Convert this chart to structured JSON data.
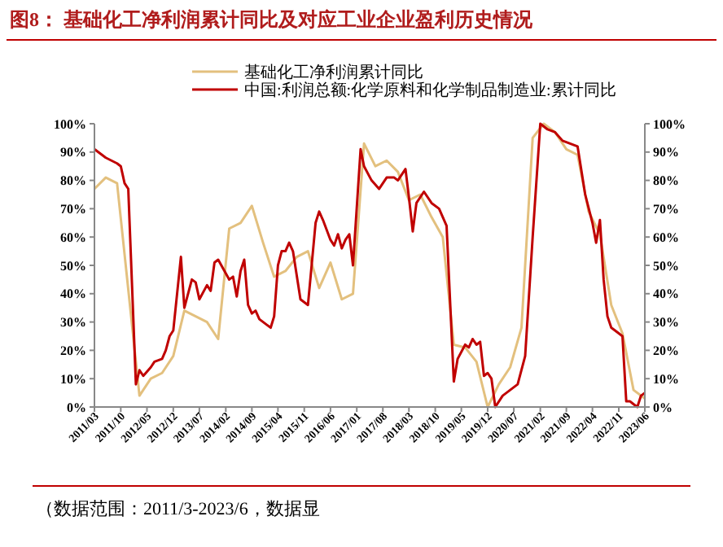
{
  "chart_data": {
    "type": "line",
    "title": "图8：  基础化工净利润累计同比及对应工业企业盈利历史情况",
    "annotations": [
      "（数据范围：2011/3-2023/6，数据显"
    ],
    "xlim": [
      "2011-03",
      "2023-06"
    ],
    "xticks": [
      {
        "value": "2011-03",
        "label": "2011/03"
      },
      {
        "value": "2011-10",
        "label": "2011/10"
      },
      {
        "value": "2012-05",
        "label": "2012/05"
      },
      {
        "value": "2012-12",
        "label": "2012/12"
      },
      {
        "value": "2013-07",
        "label": "2013/07"
      },
      {
        "value": "2014-02",
        "label": "2014/02"
      },
      {
        "value": "2014-09",
        "label": "2014/09"
      },
      {
        "value": "2015-04",
        "label": "2015/04"
      },
      {
        "value": "2015-11",
        "label": "2015/11"
      },
      {
        "value": "2016-06",
        "label": "2016/06"
      },
      {
        "value": "2017-01",
        "label": "2017/01"
      },
      {
        "value": "2017-08",
        "label": "2017/08"
      },
      {
        "value": "2018-03",
        "label": "2018/03"
      },
      {
        "value": "2018-10",
        "label": "2018/10"
      },
      {
        "value": "2019-05",
        "label": "2019/05"
      },
      {
        "value": "2019-12",
        "label": "2019/12"
      },
      {
        "value": "2020-07",
        "label": "2020/07"
      },
      {
        "value": "2021-02",
        "label": "2021/02"
      },
      {
        "value": "2021-09",
        "label": "2021/09"
      },
      {
        "value": "2022-04",
        "label": "2022/04"
      },
      {
        "value": "2022-11",
        "label": "2022/11"
      },
      {
        "value": "2023-06",
        "label": "2023/06"
      }
    ],
    "ylim": [
      0,
      100
    ],
    "yticks": [
      {
        "value": 0,
        "label": "0%"
      },
      {
        "value": 10,
        "label": "10%"
      },
      {
        "value": 20,
        "label": "20%"
      },
      {
        "value": 30,
        "label": "30%"
      },
      {
        "value": 40,
        "label": "40%"
      },
      {
        "value": 50,
        "label": "50%"
      },
      {
        "value": 60,
        "label": "60%"
      },
      {
        "value": 70,
        "label": "70%"
      },
      {
        "value": 80,
        "label": "80%"
      },
      {
        "value": 90,
        "label": "90%"
      },
      {
        "value": 100,
        "label": "100%"
      }
    ],
    "y2lim": [
      0,
      100
    ],
    "y2ticks": [
      {
        "value": 0,
        "label": "0%"
      },
      {
        "value": 10,
        "label": "10%"
      },
      {
        "value": 20,
        "label": "20%"
      },
      {
        "value": 30,
        "label": "30%"
      },
      {
        "value": 40,
        "label": "40%"
      },
      {
        "value": 50,
        "label": "50%"
      },
      {
        "value": 60,
        "label": "60%"
      },
      {
        "value": 70,
        "label": "70%"
      },
      {
        "value": 80,
        "label": "80%"
      },
      {
        "value": 90,
        "label": "90%"
      },
      {
        "value": 100,
        "label": "100%"
      }
    ],
    "legend": "top",
    "grid": false,
    "series": [
      {
        "name": "基础化工净利润累计同比",
        "color": "#e3c07e",
        "x": [
          "2011-03",
          "2011-06",
          "2011-09",
          "2012-03",
          "2012-06",
          "2012-09",
          "2012-12",
          "2013-03",
          "2013-06",
          "2013-09",
          "2013-12",
          "2014-03",
          "2014-06",
          "2014-09",
          "2014-12",
          "2015-03",
          "2015-06",
          "2015-09",
          "2015-12",
          "2016-03",
          "2016-06",
          "2016-09",
          "2016-12",
          "2017-03",
          "2017-06",
          "2017-09",
          "2017-12",
          "2018-03",
          "2018-06",
          "2018-09",
          "2018-12",
          "2019-03",
          "2019-06",
          "2019-09",
          "2019-12",
          "2020-03",
          "2020-06",
          "2020-09",
          "2020-12",
          "2021-03",
          "2021-06",
          "2021-09",
          "2021-12",
          "2022-03",
          "2022-06",
          "2022-09",
          "2022-12",
          "2023-03",
          "2023-06"
        ],
        "values": [
          77,
          81,
          79,
          4,
          10,
          12,
          18,
          34,
          32,
          30,
          24,
          63,
          65,
          71,
          58,
          46,
          48,
          53,
          55,
          42,
          51,
          38,
          40,
          93,
          85,
          87,
          83,
          73,
          75,
          67,
          60,
          22,
          21,
          16,
          0,
          8,
          14,
          28,
          95,
          100,
          97,
          91,
          89,
          69,
          61,
          36,
          26,
          6,
          3
        ]
      },
      {
        "name": "中国:利润总额:化学原料和化学制品制造业:累计同比",
        "color": "#c00000",
        "x": [
          "2011-03",
          "2011-06",
          "2011-09",
          "2011-10",
          "2011-11",
          "2011-12",
          "2012-02",
          "2012-03",
          "2012-04",
          "2012-06",
          "2012-07",
          "2012-09",
          "2012-10",
          "2012-11",
          "2012-12",
          "2013-02",
          "2013-03",
          "2013-05",
          "2013-06",
          "2013-07",
          "2013-09",
          "2013-10",
          "2013-11",
          "2013-12",
          "2014-03",
          "2014-04",
          "2014-05",
          "2014-06",
          "2014-07",
          "2014-08",
          "2014-09",
          "2014-10",
          "2014-11",
          "2015-01",
          "2015-02",
          "2015-03",
          "2015-04",
          "2015-05",
          "2015-06",
          "2015-07",
          "2015-08",
          "2015-10",
          "2015-12",
          "2016-02",
          "2016-03",
          "2016-04",
          "2016-06",
          "2016-07",
          "2016-08",
          "2016-09",
          "2016-10",
          "2016-11",
          "2016-12",
          "2017-02",
          "2017-03",
          "2017-05",
          "2017-07",
          "2017-09",
          "2017-11",
          "2017-12",
          "2018-02",
          "2018-03",
          "2018-04",
          "2018-05",
          "2018-07",
          "2018-09",
          "2018-11",
          "2019-01",
          "2019-03",
          "2019-04",
          "2019-06",
          "2019-07",
          "2019-08",
          "2019-09",
          "2019-10",
          "2019-11",
          "2019-12",
          "2020-01",
          "2020-02",
          "2020-04",
          "2020-06",
          "2020-08",
          "2020-10",
          "2020-12",
          "2021-02",
          "2021-04",
          "2021-06",
          "2021-08",
          "2021-10",
          "2021-12",
          "2022-02",
          "2022-04",
          "2022-05",
          "2022-06",
          "2022-07",
          "2022-08",
          "2022-09",
          "2022-11",
          "2022-12",
          "2023-01",
          "2023-02",
          "2023-03",
          "2023-04",
          "2023-05",
          "2023-06"
        ],
        "values": [
          91,
          88,
          86,
          85,
          79,
          77,
          8,
          13,
          11,
          14,
          16,
          17,
          20,
          25,
          27,
          53,
          35,
          45,
          44,
          38,
          43,
          41,
          51,
          52,
          45,
          46,
          39,
          48,
          52,
          36,
          33,
          34,
          31,
          29,
          28,
          32,
          50,
          55,
          55,
          58,
          55,
          38,
          36,
          65,
          69,
          66,
          59,
          57,
          61,
          56,
          59,
          61,
          50,
          91,
          85,
          80,
          77,
          81,
          81,
          80,
          84,
          74,
          62,
          72,
          76,
          72,
          70,
          64,
          9,
          17,
          22,
          21,
          24,
          22,
          23,
          11,
          12,
          10,
          0,
          4,
          6,
          8,
          18,
          60,
          100,
          98,
          97,
          94,
          93,
          92,
          75,
          65,
          58,
          66,
          45,
          32,
          28,
          26,
          25,
          2,
          2,
          1,
          0,
          4,
          5
        ]
      }
    ]
  }
}
